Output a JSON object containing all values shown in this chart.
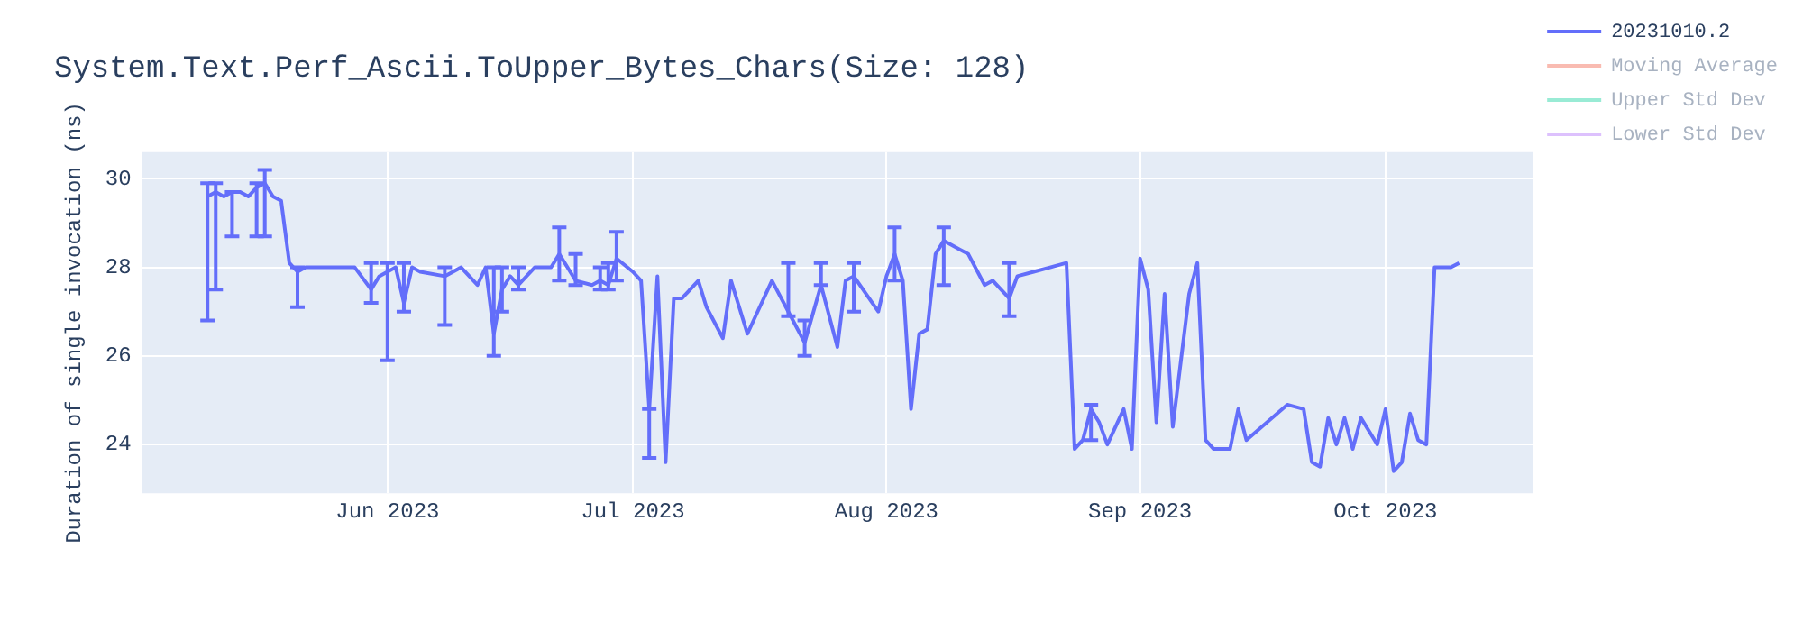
{
  "chart_data": {
    "type": "line",
    "title": "System.Text.Perf_Ascii.ToUpper_Bytes_Chars(Size: 128)",
    "ylabel": "Duration of single invocation (ns)",
    "x": [
      "2023-05-10",
      "2023-05-11",
      "2023-05-12",
      "2023-05-13",
      "2023-05-14",
      "2023-05-15",
      "2023-05-16",
      "2023-05-17",
      "2023-05-18",
      "2023-05-19",
      "2023-05-20",
      "2023-05-21",
      "2023-05-22",
      "2023-05-23",
      "2023-05-25",
      "2023-05-28",
      "2023-05-30",
      "2023-05-31",
      "2023-06-01",
      "2023-06-02",
      "2023-06-03",
      "2023-06-04",
      "2023-06-05",
      "2023-06-08",
      "2023-06-10",
      "2023-06-12",
      "2023-06-13",
      "2023-06-14",
      "2023-06-15",
      "2023-06-16",
      "2023-06-17",
      "2023-06-19",
      "2023-06-21",
      "2023-06-22",
      "2023-06-23",
      "2023-06-24",
      "2023-06-26",
      "2023-06-27",
      "2023-06-28",
      "2023-06-29",
      "2023-07-01",
      "2023-07-02",
      "2023-07-03",
      "2023-07-04",
      "2023-07-05",
      "2023-07-06",
      "2023-07-07",
      "2023-07-09",
      "2023-07-10",
      "2023-07-12",
      "2023-07-13",
      "2023-07-15",
      "2023-07-18",
      "2023-07-20",
      "2023-07-22",
      "2023-07-24",
      "2023-07-26",
      "2023-07-27",
      "2023-07-28",
      "2023-07-31",
      "2023-08-01",
      "2023-08-02",
      "2023-08-03",
      "2023-08-04",
      "2023-08-05",
      "2023-08-06",
      "2023-08-07",
      "2023-08-08",
      "2023-08-10",
      "2023-08-11",
      "2023-08-13",
      "2023-08-14",
      "2023-08-16",
      "2023-08-17",
      "2023-08-19",
      "2023-08-21",
      "2023-08-23",
      "2023-08-24",
      "2023-08-25",
      "2023-08-26",
      "2023-08-27",
      "2023-08-28",
      "2023-08-30",
      "2023-08-31",
      "2023-09-01",
      "2023-09-02",
      "2023-09-03",
      "2023-09-04",
      "2023-09-05",
      "2023-09-07",
      "2023-09-08",
      "2023-09-09",
      "2023-09-10",
      "2023-09-12",
      "2023-09-13",
      "2023-09-14",
      "2023-09-19",
      "2023-09-21",
      "2023-09-22",
      "2023-09-23",
      "2023-09-24",
      "2023-09-25",
      "2023-09-26",
      "2023-09-27",
      "2023-09-28",
      "2023-09-30",
      "2023-10-01",
      "2023-10-02",
      "2023-10-03",
      "2023-10-04",
      "2023-10-05",
      "2023-10-06",
      "2023-10-07",
      "2023-10-08",
      "2023-10-09",
      "2023-10-10"
    ],
    "series": [
      {
        "name": "20231010.2",
        "color": "#636efa",
        "values": [
          29.6,
          29.7,
          29.6,
          29.7,
          29.7,
          29.6,
          29.8,
          29.9,
          29.6,
          29.5,
          28.1,
          27.9,
          28.0,
          28.0,
          28.0,
          28.0,
          27.5,
          27.8,
          27.9,
          28.0,
          27.2,
          28.0,
          27.9,
          27.8,
          28.0,
          27.6,
          28.0,
          26.5,
          27.5,
          27.8,
          27.6,
          28.0,
          28.0,
          28.3,
          28.0,
          27.7,
          27.6,
          27.7,
          27.6,
          28.2,
          27.9,
          27.7,
          24.8,
          27.8,
          23.6,
          27.3,
          27.3,
          27.7,
          27.1,
          26.4,
          27.7,
          26.5,
          27.7,
          27.0,
          26.3,
          27.6,
          26.2,
          27.7,
          27.8,
          27.0,
          27.8,
          28.3,
          27.7,
          24.8,
          26.5,
          26.6,
          28.3,
          28.6,
          28.4,
          28.3,
          27.6,
          27.7,
          27.3,
          27.8,
          27.9,
          28.0,
          28.1,
          23.9,
          24.1,
          24.8,
          24.5,
          24.0,
          24.8,
          23.9,
          28.2,
          27.5,
          24.5,
          27.4,
          24.4,
          27.4,
          28.1,
          24.1,
          23.9,
          23.9,
          24.8,
          24.1,
          24.9,
          24.8,
          23.6,
          23.5,
          24.6,
          24.0,
          24.6,
          23.9,
          24.6,
          24.0,
          24.8,
          23.4,
          23.6,
          24.7,
          24.1,
          24.0,
          28.0,
          28.0,
          28.0,
          28.1
        ],
        "errors": [
          [
            26.8,
            29.9
          ],
          [
            27.5,
            29.9
          ],
          null,
          [
            28.7,
            29.7
          ],
          null,
          null,
          [
            28.7,
            29.9
          ],
          [
            28.7,
            30.2
          ],
          null,
          null,
          null,
          [
            27.1,
            28.0
          ],
          null,
          null,
          null,
          null,
          [
            27.2,
            28.1
          ],
          null,
          [
            25.9,
            28.1
          ],
          null,
          [
            27.0,
            28.1
          ],
          null,
          null,
          [
            26.7,
            28.0
          ],
          null,
          null,
          null,
          [
            26.0,
            28.0
          ],
          [
            27.0,
            28.0
          ],
          null,
          [
            27.5,
            28.0
          ],
          null,
          null,
          [
            27.7,
            28.9
          ],
          null,
          [
            27.6,
            28.3
          ],
          null,
          [
            27.5,
            28.0
          ],
          [
            27.5,
            28.1
          ],
          [
            27.7,
            28.8
          ],
          null,
          null,
          [
            23.7,
            24.8
          ],
          null,
          null,
          null,
          null,
          null,
          null,
          null,
          null,
          null,
          null,
          [
            26.9,
            28.1
          ],
          [
            26.0,
            26.8
          ],
          [
            27.6,
            28.1
          ],
          null,
          null,
          [
            27.0,
            28.1
          ],
          null,
          null,
          [
            27.7,
            28.9
          ],
          null,
          null,
          null,
          null,
          null,
          [
            27.6,
            28.9
          ],
          null,
          null,
          null,
          null,
          [
            26.9,
            28.1
          ],
          null,
          null,
          null,
          null,
          null,
          null,
          [
            24.1,
            24.9
          ],
          null,
          null,
          null,
          null,
          null,
          null,
          null,
          null,
          null,
          null,
          null,
          null,
          null,
          null,
          null,
          null,
          null,
          null,
          null,
          null,
          null,
          null,
          null,
          null,
          null,
          null,
          null,
          null,
          null,
          null,
          null,
          null,
          null,
          null,
          null,
          null
        ]
      },
      {
        "name": "Moving Average",
        "color": "#ef553b",
        "values": [
          null,
          null,
          null,
          null,
          null,
          null,
          null,
          null,
          null,
          null,
          null,
          null,
          null,
          null,
          null,
          null,
          null,
          null,
          null,
          null,
          null,
          null,
          null,
          null,
          null,
          null,
          null,
          null,
          null,
          null,
          null,
          null,
          null,
          null,
          null,
          null,
          null,
          null,
          null,
          null,
          null,
          null,
          null,
          null,
          null,
          null,
          null,
          null,
          null,
          null,
          null,
          null,
          null,
          null,
          null,
          null,
          null,
          null,
          null,
          null,
          null,
          null,
          null,
          null,
          null,
          null,
          null,
          null,
          null,
          null,
          null,
          null,
          null,
          null,
          null,
          null,
          null,
          null,
          null,
          null,
          null,
          null,
          null,
          null,
          null,
          null,
          null,
          null,
          null,
          null,
          null,
          null,
          null,
          null,
          null,
          null,
          null,
          null,
          null,
          null,
          null,
          null,
          null,
          null,
          null,
          null,
          null,
          null,
          null,
          null,
          null,
          null,
          null,
          null,
          null,
          null
        ]
      },
      {
        "name": "Upper Std Dev",
        "color": "#00cc96",
        "values": [
          null,
          null,
          null,
          null,
          null,
          null,
          null,
          null,
          null,
          null,
          null,
          null,
          null,
          null,
          null,
          null,
          null,
          null,
          null,
          null,
          null,
          null,
          null,
          null,
          null,
          null,
          null,
          null,
          null,
          null,
          null,
          null,
          null,
          null,
          null,
          null,
          null,
          null,
          null,
          null,
          null,
          null,
          null,
          null,
          null,
          null,
          null,
          null,
          null,
          null,
          null,
          null,
          null,
          null,
          null,
          null,
          null,
          null,
          null,
          null,
          null,
          null,
          null,
          null,
          null,
          null,
          null,
          null,
          null,
          null,
          null,
          null,
          null,
          null,
          null,
          null,
          null,
          null,
          null,
          null,
          null,
          null,
          null,
          null,
          null,
          null,
          null,
          null,
          null,
          null,
          null,
          null,
          null,
          null,
          null,
          null,
          null,
          null,
          null,
          null,
          null,
          null,
          null,
          null,
          null,
          null,
          null,
          null,
          null,
          null,
          null,
          null,
          null,
          null,
          null,
          null
        ]
      },
      {
        "name": "Lower Std Dev",
        "color": "#ab63fa",
        "values": [
          null,
          null,
          null,
          null,
          null,
          null,
          null,
          null,
          null,
          null,
          null,
          null,
          null,
          null,
          null,
          null,
          null,
          null,
          null,
          null,
          null,
          null,
          null,
          null,
          null,
          null,
          null,
          null,
          null,
          null,
          null,
          null,
          null,
          null,
          null,
          null,
          null,
          null,
          null,
          null,
          null,
          null,
          null,
          null,
          null,
          null,
          null,
          null,
          null,
          null,
          null,
          null,
          null,
          null,
          null,
          null,
          null,
          null,
          null,
          null,
          null,
          null,
          null,
          null,
          null,
          null,
          null,
          null,
          null,
          null,
          null,
          null,
          null,
          null,
          null,
          null,
          null,
          null,
          null,
          null,
          null,
          null,
          null,
          null,
          null,
          null,
          null,
          null,
          null,
          null,
          null,
          null,
          null,
          null,
          null,
          null,
          null,
          null,
          null,
          null,
          null,
          null,
          null,
          null,
          null,
          null,
          null,
          null,
          null,
          null,
          null,
          null,
          null,
          null,
          null,
          null
        ]
      }
    ],
    "xlim": [
      "2023-05-02",
      "2023-10-19"
    ],
    "xticks": [
      {
        "value": "2023-06-01",
        "label": "Jun 2023"
      },
      {
        "value": "2023-07-01",
        "label": "Jul 2023"
      },
      {
        "value": "2023-08-01",
        "label": "Aug 2023"
      },
      {
        "value": "2023-09-01",
        "label": "Sep 2023"
      },
      {
        "value": "2023-10-01",
        "label": "Oct 2023"
      }
    ],
    "ylim": [
      22.9,
      30.6
    ],
    "yticks": [
      24,
      26,
      28,
      30
    ],
    "grid": true,
    "legend": "top right",
    "marker": "none",
    "line_style": "solid"
  }
}
